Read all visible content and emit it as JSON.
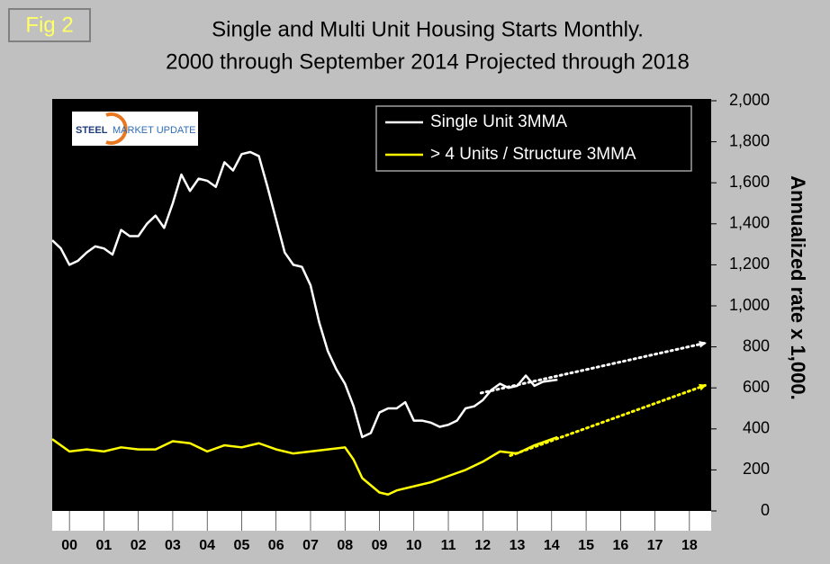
{
  "chart_data": {
    "type": "line",
    "figure_label": "Fig 2",
    "title": "Single and Multi Unit Housing Starts Monthly.",
    "subtitle": "2000 through September 2014 Projected through 2018",
    "logo": {
      "brand": "STEEL",
      "rest": "MARKET UPDATE"
    },
    "y_axis_label": "Annualized rate x 1,000.",
    "xlim": [
      2000,
      2019
    ],
    "xticks": [
      {
        "value": 2000.5,
        "label": "00"
      },
      {
        "value": 2001.5,
        "label": "01"
      },
      {
        "value": 2002.5,
        "label": "02"
      },
      {
        "value": 2003.5,
        "label": "03"
      },
      {
        "value": 2004.5,
        "label": "04"
      },
      {
        "value": 2005.5,
        "label": "05"
      },
      {
        "value": 2006.5,
        "label": "06"
      },
      {
        "value": 2007.5,
        "label": "07"
      },
      {
        "value": 2008.5,
        "label": "08"
      },
      {
        "value": 2009.5,
        "label": "09"
      },
      {
        "value": 2010.5,
        "label": "10"
      },
      {
        "value": 2011.5,
        "label": "11"
      },
      {
        "value": 2012.5,
        "label": "12"
      },
      {
        "value": 2013.5,
        "label": "13"
      },
      {
        "value": 2014.5,
        "label": "14"
      },
      {
        "value": 2015.5,
        "label": "15"
      },
      {
        "value": 2016.5,
        "label": "16"
      },
      {
        "value": 2017.5,
        "label": "17"
      },
      {
        "value": 2018.5,
        "label": "18"
      }
    ],
    "ylim": [
      0,
      2000
    ],
    "yticks": [
      0,
      200,
      400,
      600,
      800,
      {
        "value": 1000,
        "label": "1,000"
      },
      {
        "value": 1200,
        "label": "1,200"
      },
      {
        "value": 1400,
        "label": "1,400"
      },
      {
        "value": 1600,
        "label": "1,600"
      },
      {
        "value": 1800,
        "label": "1,800"
      },
      {
        "value": 2000,
        "label": "2,000"
      }
    ],
    "legend": "top-right",
    "series": [
      {
        "name": "Single Unit 3MMA",
        "color": "#ffffff",
        "x": [
          2000.0,
          2000.25,
          2000.5,
          2000.75,
          2001.0,
          2001.25,
          2001.5,
          2001.75,
          2002.0,
          2002.25,
          2002.5,
          2002.75,
          2003.0,
          2003.25,
          2003.5,
          2003.75,
          2004.0,
          2004.25,
          2004.5,
          2004.75,
          2005.0,
          2005.25,
          2005.5,
          2005.75,
          2006.0,
          2006.25,
          2006.5,
          2006.75,
          2007.0,
          2007.25,
          2007.5,
          2007.75,
          2008.0,
          2008.25,
          2008.5,
          2008.75,
          2009.0,
          2009.25,
          2009.5,
          2009.75,
          2010.0,
          2010.25,
          2010.5,
          2010.75,
          2011.0,
          2011.25,
          2011.5,
          2011.75,
          2012.0,
          2012.25,
          2012.5,
          2012.75,
          2013.0,
          2013.25,
          2013.5,
          2013.75,
          2014.0,
          2014.25,
          2014.67
        ],
        "values": [
          1320,
          1280,
          1200,
          1220,
          1260,
          1290,
          1280,
          1250,
          1370,
          1340,
          1340,
          1400,
          1440,
          1380,
          1500,
          1640,
          1560,
          1620,
          1610,
          1580,
          1700,
          1660,
          1740,
          1750,
          1730,
          1580,
          1420,
          1260,
          1200,
          1190,
          1100,
          920,
          780,
          690,
          620,
          510,
          360,
          380,
          480,
          500,
          500,
          530,
          440,
          440,
          430,
          410,
          420,
          440,
          500,
          510,
          540,
          590,
          620,
          600,
          610,
          660,
          610,
          630,
          640
        ]
      },
      {
        "name": "> 4 Units / Structure 3MMA",
        "color": "#ffff00",
        "x": [
          2000.0,
          2000.5,
          2001.0,
          2001.5,
          2002.0,
          2002.5,
          2003.0,
          2003.5,
          2004.0,
          2004.5,
          2005.0,
          2005.5,
          2006.0,
          2006.5,
          2007.0,
          2007.5,
          2008.0,
          2008.5,
          2008.75,
          2009.0,
          2009.5,
          2009.75,
          2010.0,
          2010.5,
          2011.0,
          2011.5,
          2012.0,
          2012.5,
          2013.0,
          2013.5,
          2014.0,
          2014.67
        ],
        "values": [
          350,
          290,
          300,
          290,
          310,
          300,
          300,
          340,
          330,
          290,
          320,
          310,
          330,
          300,
          280,
          290,
          300,
          310,
          250,
          160,
          90,
          80,
          100,
          120,
          140,
          170,
          200,
          240,
          290,
          280,
          320,
          360
        ]
      }
    ],
    "projections": [
      {
        "color": "#ffffff",
        "x": [
          2012.45,
          2019.0
        ],
        "values": [
          575,
          820
        ]
      },
      {
        "color": "#ffff00",
        "x": [
          2013.3,
          2019.0
        ],
        "values": [
          270,
          615
        ]
      }
    ]
  }
}
